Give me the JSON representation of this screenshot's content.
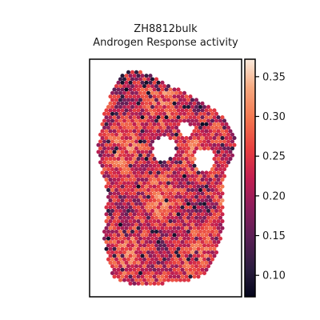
{
  "chart_data": {
    "type": "heatmap",
    "title_lines": [
      "ZH8812bulk",
      "Androgen Response activity"
    ],
    "xlabel": "",
    "ylabel": "",
    "colorbar": {
      "colormap": "rocket",
      "range": [
        0.073,
        0.372
      ],
      "ticks": [
        0.1,
        0.15,
        0.2,
        0.25,
        0.3,
        0.35
      ],
      "tick_labels": [
        "0.10",
        "0.15",
        "0.20",
        "0.25",
        "0.30",
        "0.35"
      ]
    },
    "grid": false,
    "spots": {
      "mean_value": 0.24,
      "min_value": 0.08,
      "max_value": 0.36,
      "layout": "hexagonal spatial spots"
    }
  }
}
